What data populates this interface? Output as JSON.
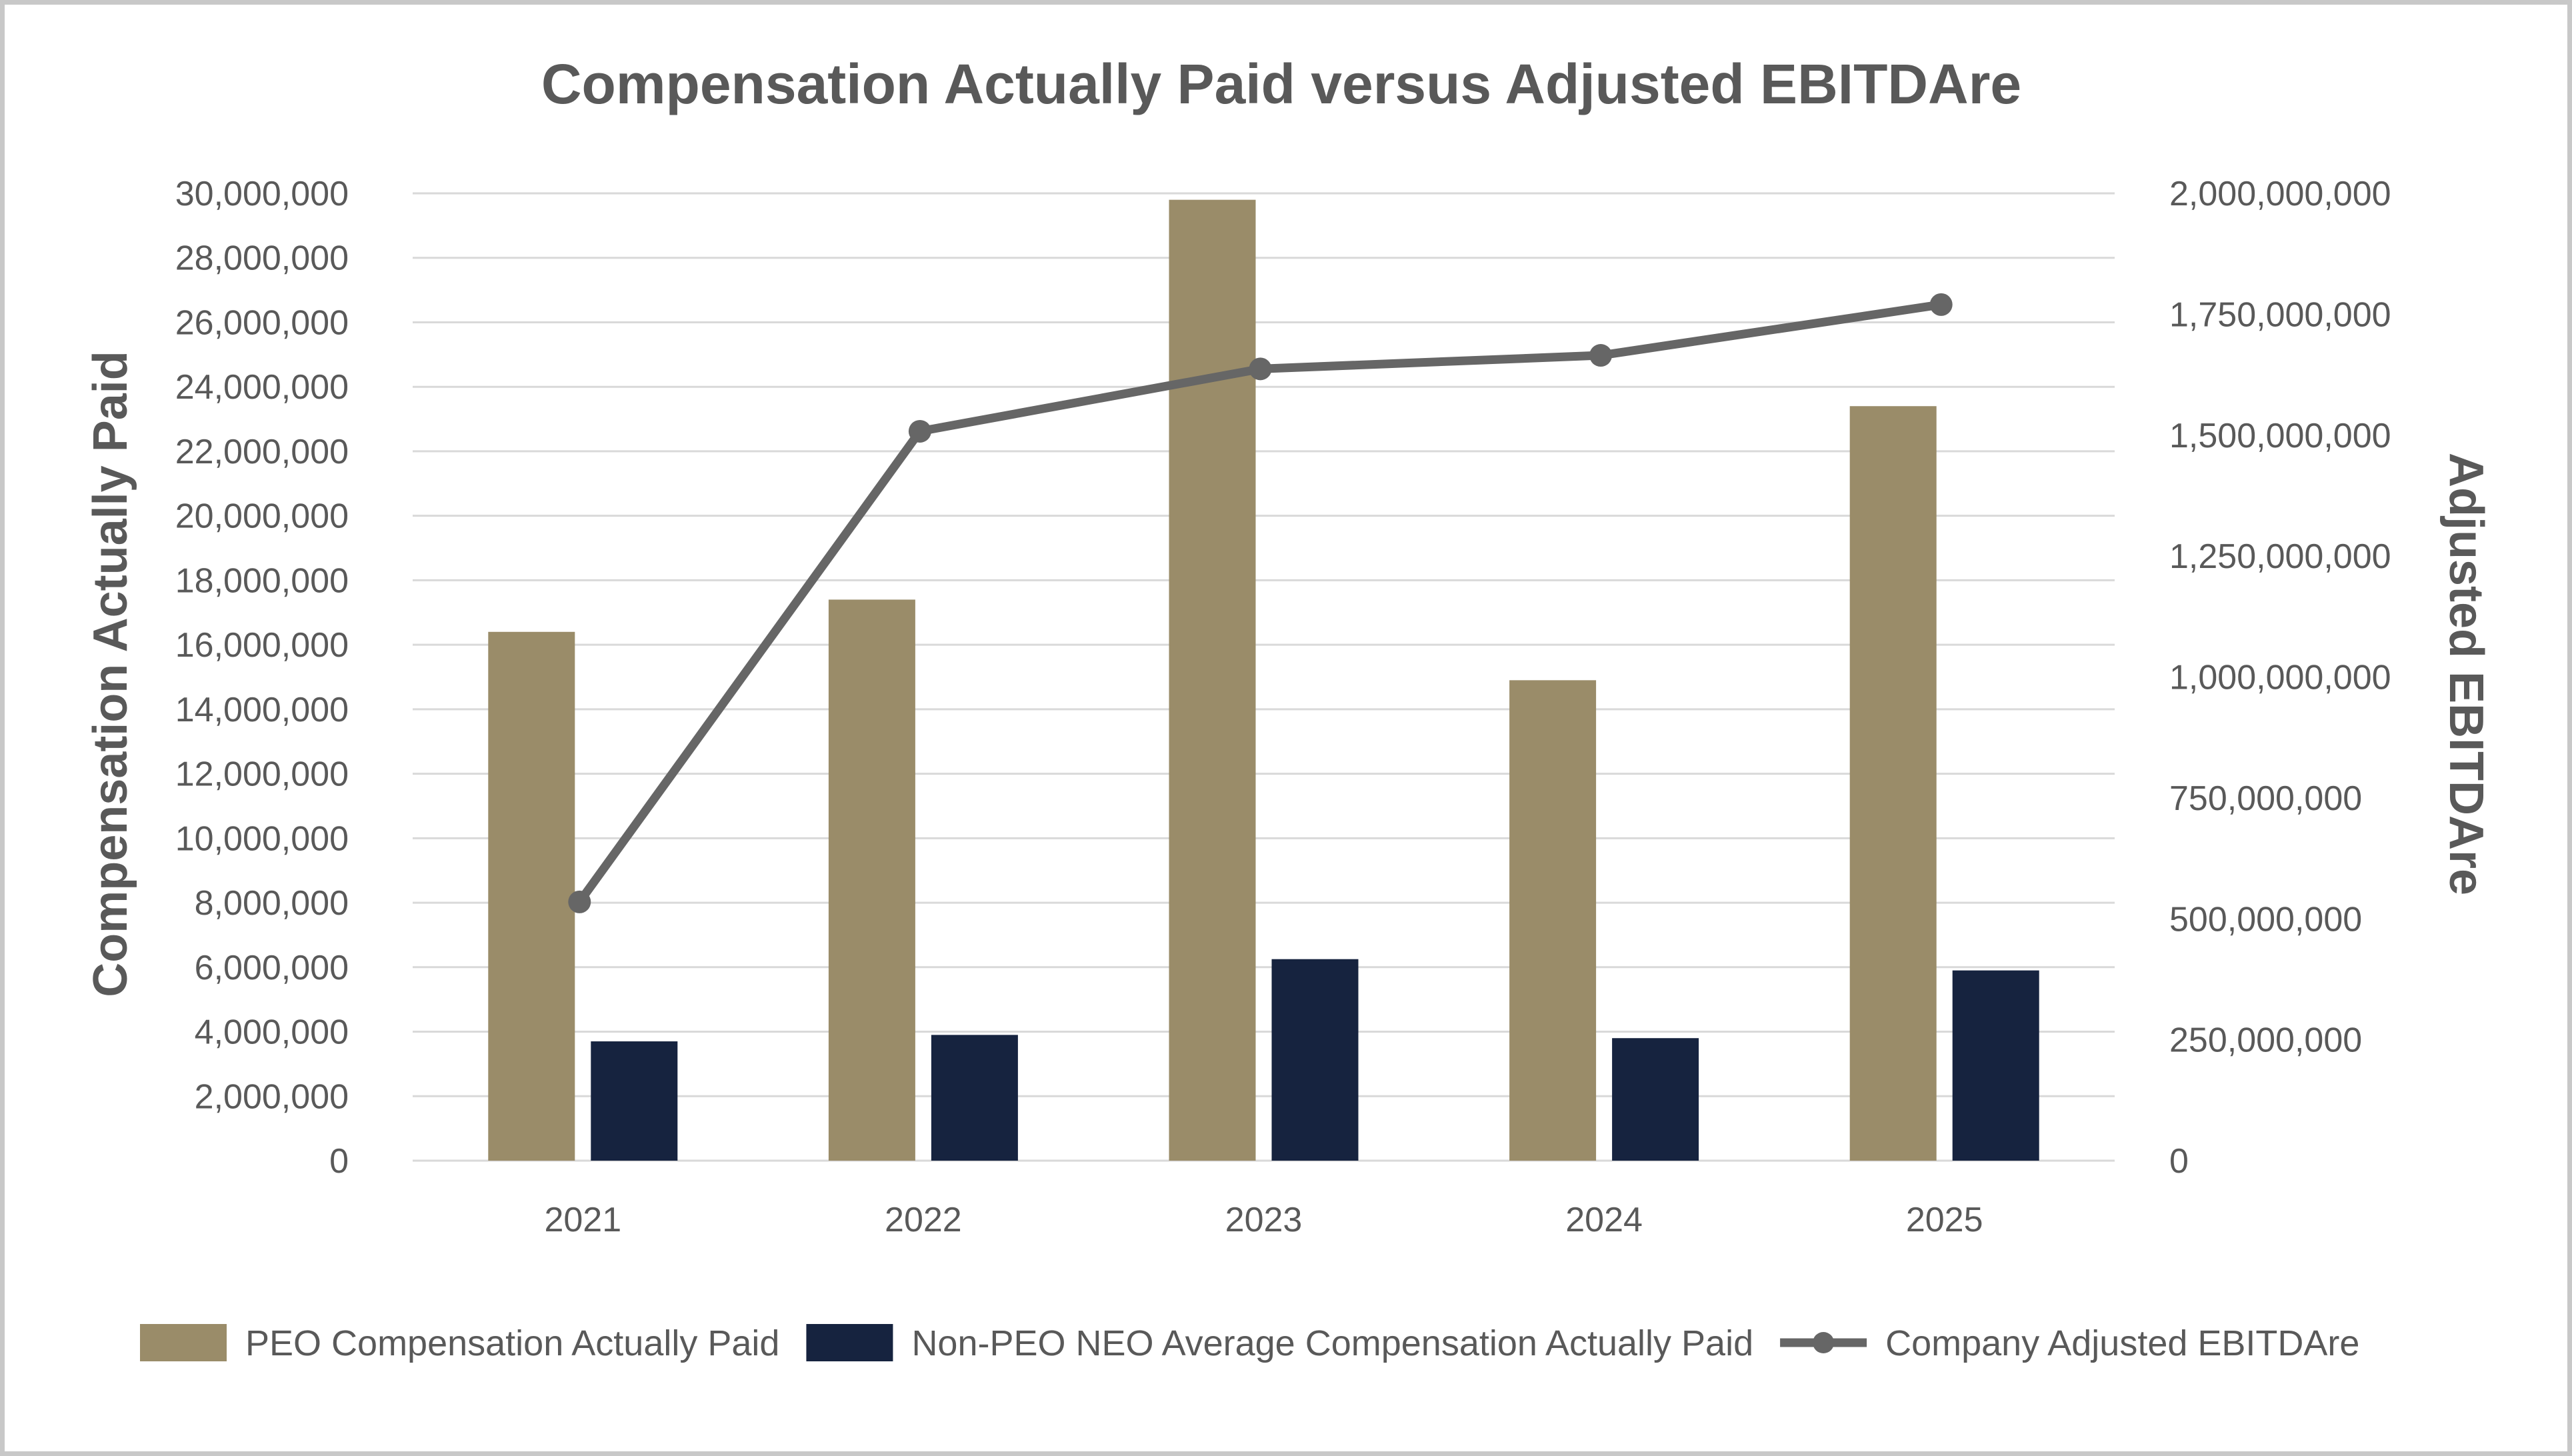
{
  "chart_data": {
    "type": "bar",
    "title": "Compensation Actually Paid versus Adjusted EBITDAre",
    "categories": [
      "2021",
      "2022",
      "2023",
      "2024",
      "2025"
    ],
    "y_left": {
      "label": "Compensation Actually Paid",
      "ylim": [
        0,
        30000000
      ],
      "ticks": [
        "0",
        "2,000,000",
        "4,000,000",
        "6,000,000",
        "8,000,000",
        "10,000,000",
        "12,000,000",
        "14,000,000",
        "16,000,000",
        "18,000,000",
        "20,000,000",
        "22,000,000",
        "24,000,000",
        "26,000,000",
        "28,000,000",
        "30,000,000"
      ]
    },
    "y_right": {
      "label": "Adjusted EBITDAre",
      "ylim": [
        0,
        2000000000
      ],
      "ticks": [
        "0",
        "250,000,000",
        "500,000,000",
        "750,000,000",
        "1,000,000,000",
        "1,250,000,000",
        "1,500,000,000",
        "1,750,000,000",
        "2,000,000,000"
      ]
    },
    "grid": true,
    "legend_position": "bottom",
    "series": [
      {
        "name": "PEO Compensation Actually Paid",
        "type": "bar",
        "axis": "left",
        "color": "#9a8c69",
        "values": [
          16400000,
          17400000,
          29800000,
          14900000,
          23400000
        ]
      },
      {
        "name": "Non-PEO NEO Average Compensation Actually Paid",
        "type": "bar",
        "axis": "left",
        "color": "#16233f",
        "values": [
          3700000,
          3900000,
          6250000,
          3800000,
          5900000
        ]
      },
      {
        "name": "Company Adjusted EBITDAre",
        "type": "line",
        "axis": "right",
        "color": "#666666",
        "values": [
          535000000,
          1508000000,
          1637000000,
          1665000000,
          1770000000
        ]
      }
    ]
  }
}
